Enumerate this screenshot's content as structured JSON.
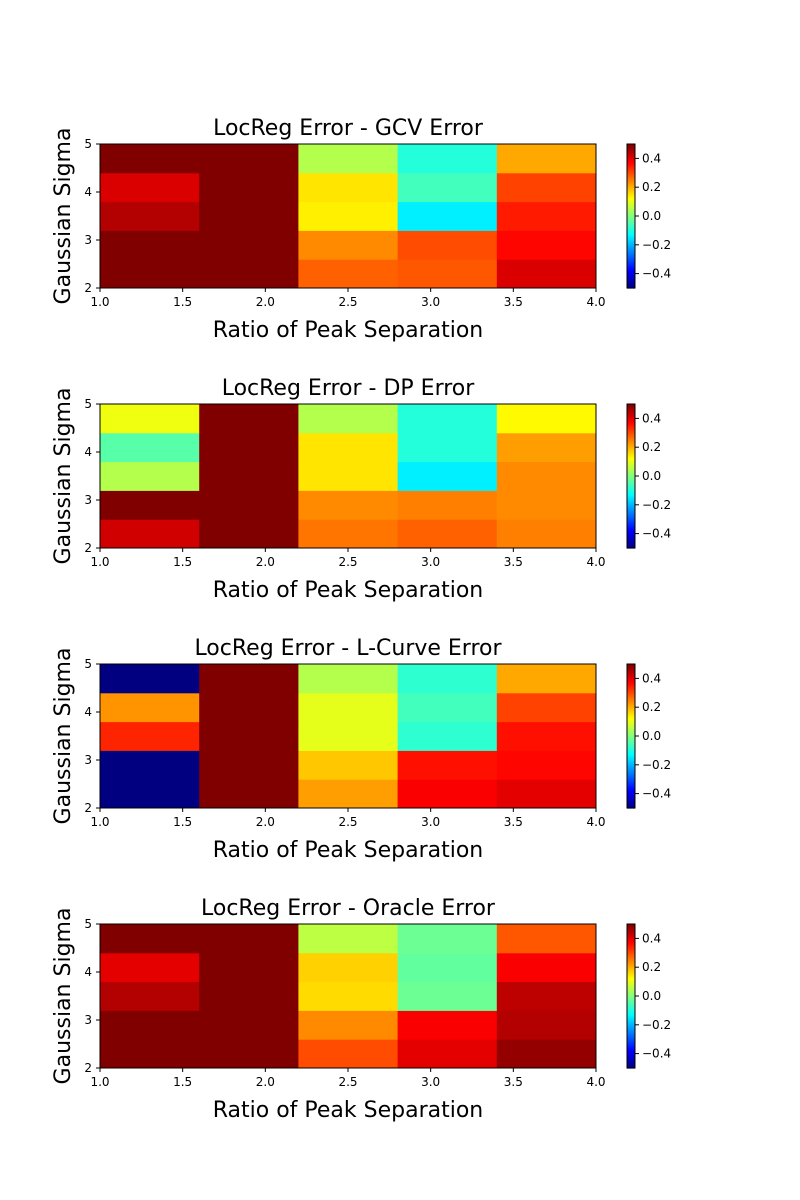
{
  "chart_data": [
    {
      "type": "heatmap",
      "title": "LocReg Error - GCV Error",
      "xlabel": "Ratio of Peak Separation",
      "ylabel": "Gaussian Sigma",
      "xlim": [
        1.0,
        4.0
      ],
      "ylim": [
        2,
        5
      ],
      "x_ticks": [
        "1.0",
        "1.5",
        "2.0",
        "2.5",
        "3.0",
        "3.5",
        "4.0"
      ],
      "y_ticks": [
        "2",
        "3",
        "4",
        "5"
      ],
      "colormap": "jet",
      "vmin": -0.5,
      "vmax": 0.5,
      "colorbar_ticks": [
        "−0.4",
        "−0.2",
        "0.0",
        "0.2",
        "0.4"
      ],
      "x_centers": [
        1.3,
        1.9,
        2.5,
        3.1,
        3.7
      ],
      "y_centers": [
        2.3,
        2.9,
        3.5,
        4.1,
        4.7
      ],
      "values": [
        [
          0.55,
          0.55,
          0.28,
          0.29,
          0.41
        ],
        [
          0.55,
          0.55,
          0.24,
          0.3,
          0.37
        ],
        [
          0.45,
          0.55,
          0.14,
          -0.14,
          0.35
        ],
        [
          0.41,
          0.55,
          0.15,
          -0.06,
          0.31
        ],
        [
          0.55,
          0.55,
          0.05,
          -0.09,
          0.21
        ]
      ]
    },
    {
      "type": "heatmap",
      "title": "LocReg Error - DP Error",
      "xlabel": "Ratio of Peak Separation",
      "ylabel": "Gaussian Sigma",
      "xlim": [
        1.0,
        4.0
      ],
      "ylim": [
        2,
        5
      ],
      "x_ticks": [
        "1.0",
        "1.5",
        "2.0",
        "2.5",
        "3.0",
        "3.5",
        "4.0"
      ],
      "y_ticks": [
        "2",
        "3",
        "4",
        "5"
      ],
      "colormap": "jet",
      "vmin": -0.5,
      "vmax": 0.5,
      "colorbar_ticks": [
        "−0.4",
        "−0.2",
        "0.0",
        "0.2",
        "0.4"
      ],
      "x_centers": [
        1.3,
        1.9,
        2.5,
        3.1,
        3.7
      ],
      "y_centers": [
        2.3,
        2.9,
        3.5,
        4.1,
        4.7
      ],
      "values": [
        [
          0.42,
          0.55,
          0.26,
          0.28,
          0.25
        ],
        [
          0.55,
          0.55,
          0.24,
          0.25,
          0.24
        ],
        [
          0.05,
          0.55,
          0.15,
          -0.14,
          0.24
        ],
        [
          -0.04,
          0.55,
          0.15,
          -0.09,
          0.22
        ],
        [
          0.11,
          0.55,
          0.05,
          -0.09,
          0.13
        ]
      ]
    },
    {
      "type": "heatmap",
      "title": "LocReg Error - L-Curve Error",
      "xlabel": "Ratio of Peak Separation",
      "ylabel": "Gaussian Sigma",
      "xlim": [
        1.0,
        4.0
      ],
      "ylim": [
        2,
        5
      ],
      "x_ticks": [
        "1.0",
        "1.5",
        "2.0",
        "2.5",
        "3.0",
        "3.5",
        "4.0"
      ],
      "y_ticks": [
        "2",
        "3",
        "4",
        "5"
      ],
      "colormap": "jet",
      "vmin": -0.5,
      "vmax": 0.5,
      "colorbar_ticks": [
        "−0.4",
        "−0.2",
        "0.0",
        "0.2",
        "0.4"
      ],
      "x_centers": [
        1.3,
        1.9,
        2.5,
        3.1,
        3.7
      ],
      "y_centers": [
        2.3,
        2.9,
        3.5,
        4.1,
        4.7
      ],
      "values": [
        [
          -0.55,
          0.55,
          0.22,
          0.38,
          0.4
        ],
        [
          -0.55,
          0.55,
          0.18,
          0.36,
          0.37
        ],
        [
          0.34,
          0.55,
          0.1,
          -0.08,
          0.36
        ],
        [
          0.23,
          0.55,
          0.1,
          -0.06,
          0.31
        ],
        [
          -0.55,
          0.55,
          0.05,
          -0.08,
          0.21
        ]
      ]
    },
    {
      "type": "heatmap",
      "title": "LocReg Error - Oracle Error",
      "xlabel": "Ratio of Peak Separation",
      "ylabel": "Gaussian Sigma",
      "xlim": [
        1.0,
        4.0
      ],
      "ylim": [
        2,
        5
      ],
      "x_ticks": [
        "1.0",
        "1.5",
        "2.0",
        "2.5",
        "3.0",
        "3.5",
        "4.0"
      ],
      "y_ticks": [
        "2",
        "3",
        "4",
        "5"
      ],
      "colormap": "jet",
      "vmin": -0.5,
      "vmax": 0.5,
      "colorbar_ticks": [
        "−0.4",
        "−0.2",
        "0.0",
        "0.2",
        "0.4"
      ],
      "x_centers": [
        1.3,
        1.9,
        2.5,
        3.1,
        3.7
      ],
      "y_centers": [
        2.3,
        2.9,
        3.5,
        4.1,
        4.7
      ],
      "values": [
        [
          0.55,
          0.55,
          0.3,
          0.4,
          0.48
        ],
        [
          0.55,
          0.55,
          0.24,
          0.38,
          0.45
        ],
        [
          0.45,
          0.55,
          0.16,
          -0.02,
          0.44
        ],
        [
          0.4,
          0.55,
          0.17,
          -0.03,
          0.38
        ],
        [
          0.55,
          0.55,
          0.06,
          -0.02,
          0.29
        ]
      ]
    }
  ]
}
